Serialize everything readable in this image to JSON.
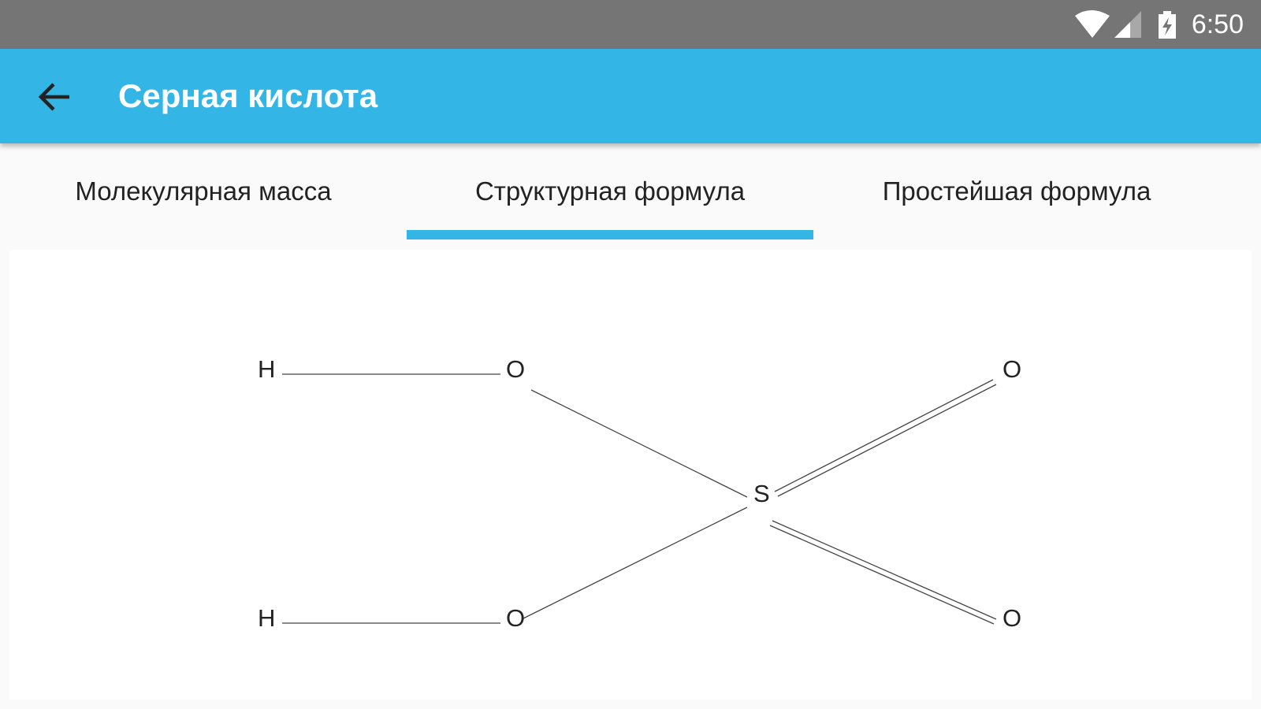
{
  "status_bar": {
    "time": "6:50",
    "icons": [
      "wifi-icon",
      "signal-icon",
      "battery-charging-icon"
    ]
  },
  "app_bar": {
    "title": "Серная кислота",
    "back_icon": "arrow-back-icon"
  },
  "tabs": [
    {
      "label": "Молекулярная масса",
      "selected": false
    },
    {
      "label": "Структурная формула",
      "selected": true
    },
    {
      "label": "Простейшая формула",
      "selected": false
    }
  ],
  "colors": {
    "accent": "#33b5e5",
    "status_bar": "#757575"
  },
  "formula": {
    "atoms": {
      "h1": "H",
      "o1": "O",
      "h2": "H",
      "o2": "O",
      "s": "S",
      "o3": "O",
      "o4": "O"
    }
  }
}
